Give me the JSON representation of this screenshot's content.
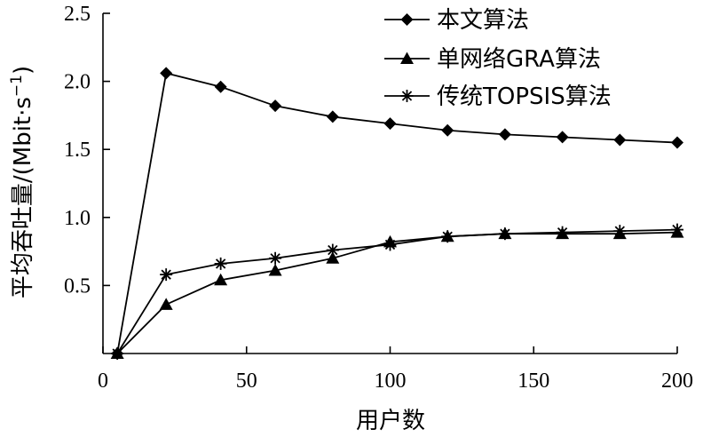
{
  "chart_data": {
    "type": "line",
    "title": "",
    "xlabel": "用户数",
    "ylabel": "平均吞吐量/(Mbit·s⁻¹)",
    "ylabel_parts": {
      "main": "平均吞吐量/(Mbit·s",
      "sup": "−1",
      "end": ")"
    },
    "xlim": [
      0,
      200
    ],
    "ylim": [
      0,
      2.5
    ],
    "x_ticks": [
      0,
      50,
      100,
      150,
      200
    ],
    "y_ticks": [
      0.5,
      1.0,
      1.5,
      2.0,
      2.5
    ],
    "y_tick_labels": [
      "0.5",
      "1.0",
      "1.5",
      "2.0",
      "2.5"
    ],
    "x_tick_labels": [
      "0",
      "50",
      "100",
      "150",
      "200"
    ],
    "grid": false,
    "legend_position": "top-right",
    "series": [
      {
        "name": "本文算法",
        "marker": "diamond",
        "x": [
          5,
          22,
          41,
          60,
          80,
          100,
          120,
          140,
          160,
          180,
          200
        ],
        "values": [
          0.0,
          2.06,
          1.96,
          1.82,
          1.74,
          1.69,
          1.64,
          1.61,
          1.59,
          1.57,
          1.55
        ]
      },
      {
        "name": "单网络GRA算法",
        "marker": "triangle",
        "x": [
          5,
          22,
          41,
          60,
          80,
          100,
          120,
          140,
          160,
          180,
          200
        ],
        "values": [
          0.0,
          0.36,
          0.54,
          0.61,
          0.7,
          0.82,
          0.86,
          0.88,
          0.88,
          0.88,
          0.89
        ]
      },
      {
        "name": "传统TOPSIS算法",
        "marker": "asterisk",
        "x": [
          5,
          22,
          41,
          60,
          80,
          100,
          120,
          140,
          160,
          180,
          200
        ],
        "values": [
          0.0,
          0.58,
          0.66,
          0.7,
          0.76,
          0.8,
          0.86,
          0.88,
          0.89,
          0.9,
          0.91
        ]
      }
    ]
  }
}
